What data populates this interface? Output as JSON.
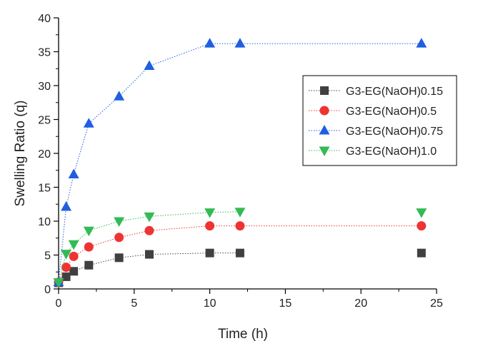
{
  "chart_data": {
    "type": "line",
    "title": "",
    "xlabel": "Time (h)",
    "ylabel": "Swelling Ratio (q)",
    "xlim": [
      0,
      25
    ],
    "ylim": [
      0,
      40
    ],
    "x_ticks": [
      0,
      5,
      10,
      15,
      20,
      25
    ],
    "y_ticks": [
      0,
      5,
      10,
      15,
      20,
      25,
      30,
      35,
      40
    ],
    "grid": false,
    "legend_position": "top-right",
    "series": [
      {
        "name": "G3-EG(NaOH)0.15",
        "color": "#404040",
        "marker": "square",
        "x": [
          0,
          0.5,
          1,
          2,
          4,
          6,
          10,
          12,
          24
        ],
        "y": [
          0.9,
          1.8,
          2.6,
          3.5,
          4.6,
          5.1,
          5.3,
          5.3,
          5.3
        ],
        "connected_points": 8
      },
      {
        "name": "G3-EG(NaOH)0.5",
        "color": "#ee3333",
        "marker": "circle",
        "x": [
          0,
          0.5,
          1,
          2,
          4,
          6,
          10,
          12,
          24
        ],
        "y": [
          1.0,
          3.2,
          4.8,
          6.2,
          7.6,
          8.6,
          9.3,
          9.3,
          9.3
        ],
        "connected_points": 9
      },
      {
        "name": "G3-EG(NaOH)0.75",
        "color": "#1f5fe0",
        "marker": "triangle-up",
        "x": [
          0,
          0.5,
          1,
          2,
          4,
          6,
          10,
          12,
          24
        ],
        "y": [
          1.0,
          12.1,
          16.9,
          24.4,
          28.4,
          32.9,
          36.2,
          36.2,
          36.2
        ],
        "connected_points": 9
      },
      {
        "name": "G3-EG(NaOH)1.0",
        "color": "#33bb55",
        "marker": "triangle-down",
        "x": [
          0,
          0.5,
          1,
          2,
          4,
          6,
          10,
          12,
          24
        ],
        "y": [
          1.0,
          5.2,
          6.6,
          8.6,
          10.0,
          10.7,
          11.3,
          11.4,
          11.3
        ],
        "connected_points": 8
      }
    ]
  }
}
